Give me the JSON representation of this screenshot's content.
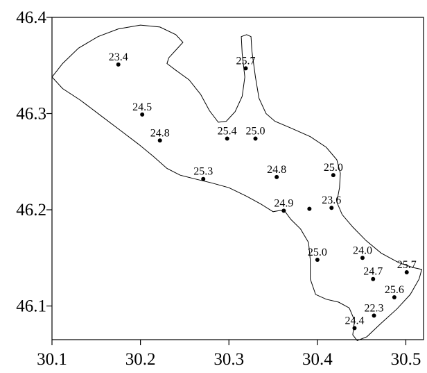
{
  "chart_data": {
    "type": "scatter",
    "xlim": [
      30.1,
      30.52
    ],
    "ylim": [
      46.065,
      46.4
    ],
    "x_ticks": [
      {
        "value": 30.1,
        "label": "30.1"
      },
      {
        "value": 30.2,
        "label": "30.2"
      },
      {
        "value": 30.3,
        "label": "30.3"
      },
      {
        "value": 30.4,
        "label": "30.4"
      },
      {
        "value": 30.5,
        "label": "30.5"
      }
    ],
    "y_ticks": [
      {
        "value": 46.1,
        "label": "46.1"
      },
      {
        "value": 46.2,
        "label": "46.2"
      },
      {
        "value": 46.3,
        "label": "46.3"
      },
      {
        "value": 46.4,
        "label": "46.4"
      }
    ],
    "grid": false,
    "points": [
      {
        "x": 30.175,
        "y": 46.351,
        "label": "23.4"
      },
      {
        "x": 30.319,
        "y": 46.347,
        "label": "25.7"
      },
      {
        "x": 30.202,
        "y": 46.299,
        "label": "24.5"
      },
      {
        "x": 30.222,
        "y": 46.272,
        "label": "24.8"
      },
      {
        "x": 30.298,
        "y": 46.274,
        "label": "25.4"
      },
      {
        "x": 30.33,
        "y": 46.274,
        "label": "25.0"
      },
      {
        "x": 30.271,
        "y": 46.232,
        "label": "25.3"
      },
      {
        "x": 30.354,
        "y": 46.234,
        "label": "24.8"
      },
      {
        "x": 30.418,
        "y": 46.236,
        "label": "25.0"
      },
      {
        "x": 30.362,
        "y": 46.199,
        "label": "24.9"
      },
      {
        "x": 30.391,
        "y": 46.201,
        "label": ""
      },
      {
        "x": 30.416,
        "y": 46.202,
        "label": "23.6"
      },
      {
        "x": 30.4,
        "y": 46.148,
        "label": "25.0"
      },
      {
        "x": 30.451,
        "y": 46.15,
        "label": "24.0"
      },
      {
        "x": 30.463,
        "y": 46.128,
        "label": "24.7"
      },
      {
        "x": 30.501,
        "y": 46.135,
        "label": "25.7"
      },
      {
        "x": 30.487,
        "y": 46.109,
        "label": "25.6"
      },
      {
        "x": 30.464,
        "y": 46.09,
        "label": "22.3"
      },
      {
        "x": 30.442,
        "y": 46.077,
        "label": "24.4"
      }
    ],
    "outline": [
      [
        30.1,
        46.338
      ],
      [
        30.112,
        46.352
      ],
      [
        30.13,
        46.368
      ],
      [
        30.152,
        46.38
      ],
      [
        30.175,
        46.388
      ],
      [
        30.2,
        46.392
      ],
      [
        30.222,
        46.39
      ],
      [
        30.24,
        46.382
      ],
      [
        30.248,
        46.374
      ],
      [
        30.24,
        46.366
      ],
      [
        30.232,
        46.358
      ],
      [
        30.23,
        46.352
      ],
      [
        30.24,
        46.345
      ],
      [
        30.255,
        46.335
      ],
      [
        30.268,
        46.32
      ],
      [
        30.278,
        46.303
      ],
      [
        30.288,
        46.291
      ],
      [
        30.297,
        46.292
      ],
      [
        30.307,
        46.302
      ],
      [
        30.315,
        46.318
      ],
      [
        30.318,
        46.338
      ],
      [
        30.315,
        46.362
      ],
      [
        30.314,
        46.38
      ],
      [
        30.32,
        46.382
      ],
      [
        30.325,
        46.38
      ],
      [
        30.326,
        46.365
      ],
      [
        30.33,
        46.338
      ],
      [
        30.334,
        46.316
      ],
      [
        30.342,
        46.3
      ],
      [
        30.352,
        46.292
      ],
      [
        30.37,
        46.285
      ],
      [
        30.392,
        46.276
      ],
      [
        30.41,
        46.265
      ],
      [
        30.422,
        46.252
      ],
      [
        30.426,
        46.238
      ],
      [
        30.425,
        46.223
      ],
      [
        30.422,
        46.208
      ],
      [
        30.428,
        46.195
      ],
      [
        30.44,
        46.182
      ],
      [
        30.455,
        46.168
      ],
      [
        30.472,
        46.155
      ],
      [
        30.492,
        46.145
      ],
      [
        30.508,
        46.14
      ],
      [
        30.518,
        46.138
      ],
      [
        30.515,
        46.128
      ],
      [
        30.505,
        46.112
      ],
      [
        30.49,
        46.097
      ],
      [
        30.472,
        46.082
      ],
      [
        30.456,
        46.068
      ],
      [
        30.445,
        46.064
      ],
      [
        30.44,
        46.07
      ],
      [
        30.442,
        46.085
      ],
      [
        30.436,
        46.098
      ],
      [
        30.424,
        46.104
      ],
      [
        30.41,
        46.107
      ],
      [
        30.398,
        46.112
      ],
      [
        30.392,
        46.128
      ],
      [
        30.392,
        46.148
      ],
      [
        30.39,
        46.166
      ],
      [
        30.381,
        46.18
      ],
      [
        30.37,
        46.19
      ],
      [
        30.362,
        46.2
      ],
      [
        30.35,
        46.198
      ],
      [
        30.336,
        46.206
      ],
      [
        30.32,
        46.214
      ],
      [
        30.3,
        46.223
      ],
      [
        30.28,
        46.228
      ],
      [
        30.262,
        46.232
      ],
      [
        30.245,
        46.236
      ],
      [
        30.23,
        46.243
      ],
      [
        30.214,
        46.256
      ],
      [
        30.198,
        46.268
      ],
      [
        30.178,
        46.282
      ],
      [
        30.155,
        46.298
      ],
      [
        30.132,
        46.314
      ],
      [
        30.112,
        46.326
      ],
      [
        30.1,
        46.338
      ]
    ]
  }
}
